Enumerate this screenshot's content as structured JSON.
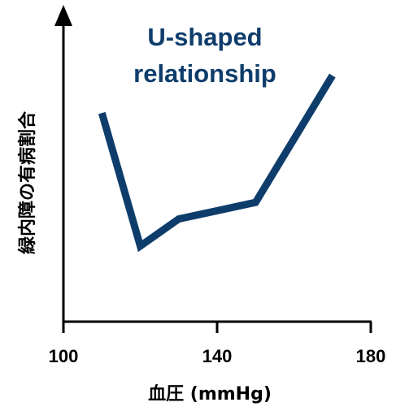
{
  "chart_data": {
    "type": "line",
    "title": "",
    "xlabel": "血圧 (mmHg)",
    "ylabel": "緑内障の有病割合",
    "xlim": [
      100,
      180
    ],
    "xticks": [
      "100",
      "140",
      "180"
    ],
    "yticks": [],
    "grid": false,
    "legend": "none",
    "annotation": [
      "U-shaped",
      "relationship"
    ],
    "series_color": "#0e3d6b",
    "annotation_color": "#0e3d6b",
    "axis_color": "#000000",
    "series": [
      {
        "x": [
          110,
          120,
          130,
          150,
          170
        ],
        "y": [
          0.82,
          0.18,
          0.31,
          0.39,
          1.0
        ]
      }
    ]
  }
}
